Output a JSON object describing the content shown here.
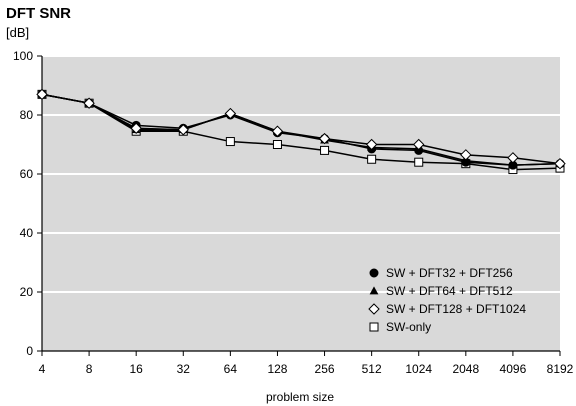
{
  "chart_data": {
    "type": "line",
    "title": "DFT SNR",
    "ylabel": "[dB]",
    "xlabel": "problem size",
    "categories": [
      "4",
      "8",
      "16",
      "32",
      "64",
      "128",
      "256",
      "512",
      "1024",
      "2048",
      "4096",
      "8192"
    ],
    "ylim": [
      0,
      100
    ],
    "yticks": [
      0,
      20,
      40,
      60,
      80,
      100
    ],
    "grid": true,
    "legend_position": "bottom-right",
    "background_color": "#d9d9d9",
    "grid_color": "#ffffff",
    "line_color": "#000000",
    "series": [
      {
        "name": "SW + DFT32 + DFT256",
        "marker": "circle-filled",
        "values": [
          87,
          84,
          76.5,
          75.5,
          80,
          74,
          72,
          68.5,
          68,
          64,
          63,
          63.5
        ]
      },
      {
        "name": "SW + DFT64 + DFT512",
        "marker": "triangle-filled",
        "values": [
          87,
          84,
          75,
          75,
          80.5,
          74.5,
          71.5,
          69,
          68.5,
          64.5,
          63,
          63.5
        ]
      },
      {
        "name": "SW + DFT128 + DFT1024",
        "marker": "diamond-open",
        "values": [
          87,
          84,
          75.5,
          75,
          80.5,
          74.5,
          72,
          70,
          70,
          66.5,
          65.5,
          63.5
        ]
      },
      {
        "name": "SW-only",
        "marker": "square-open",
        "values": [
          87,
          84,
          74.5,
          74.5,
          71,
          70,
          68,
          65,
          64,
          63.5,
          61.5,
          62
        ]
      }
    ]
  }
}
